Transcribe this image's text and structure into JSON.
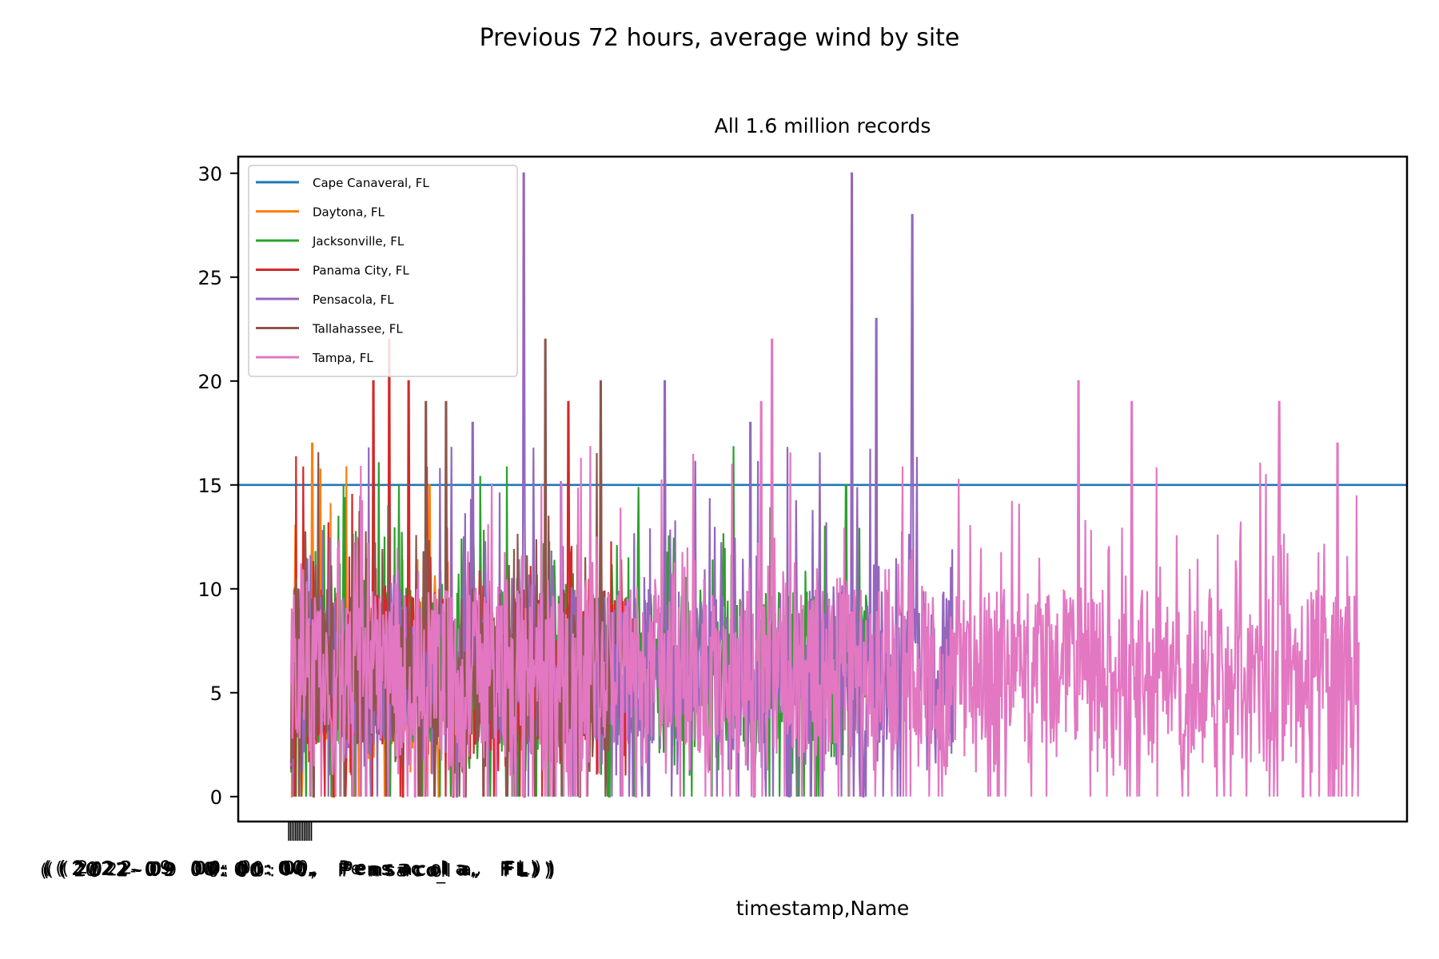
{
  "chart_data": {
    "type": "line",
    "suptitle": "Previous 72 hours, average wind by site",
    "title": "All 1.6 million records",
    "xlabel": "timestamp,Name",
    "ylabel": "",
    "ylim": [
      -1.2,
      30.8
    ],
    "yticks": [
      0,
      5,
      10,
      15,
      20,
      25,
      30
    ],
    "grid": false,
    "legend_position": "top-left",
    "x_tick_labels_illegible": true,
    "series": [
      {
        "name": "Cape Canaveral, FL",
        "color": "#1f77b4",
        "constant_value": 15,
        "x_range": [
          0,
          1
        ],
        "peaks": []
      },
      {
        "name": "Daytona, FL",
        "color": "#ff7f0e",
        "x_range": [
          0,
          0.15
        ],
        "peaks": [
          [
            0.02,
            17
          ],
          [
            0.13,
            15
          ]
        ]
      },
      {
        "name": "Jacksonville, FL",
        "color": "#2ca02c",
        "x_range": [
          0,
          0.54
        ],
        "peaks": [
          [
            0.17,
            13
          ],
          [
            0.5,
            13
          ],
          [
            0.52,
            15
          ]
        ]
      },
      {
        "name": "Panama City, FL",
        "color": "#d62728",
        "x_range": [
          0,
          0.32
        ],
        "peaks": [
          [
            0.077,
            20
          ],
          [
            0.092,
            22
          ],
          [
            0.11,
            20
          ],
          [
            0.26,
            19
          ],
          [
            0.29,
            18
          ]
        ]
      },
      {
        "name": "Pensacola, FL",
        "color": "#9467bd",
        "x_range": [
          0,
          0.62
        ],
        "peaks": [
          [
            0.17,
            18
          ],
          [
            0.218,
            30
          ],
          [
            0.35,
            20
          ],
          [
            0.43,
            18
          ],
          [
            0.525,
            30
          ],
          [
            0.548,
            23
          ],
          [
            0.582,
            28
          ]
        ]
      },
      {
        "name": "Tallahassee, FL",
        "color": "#8c564b",
        "x_range": [
          0,
          0.3
        ],
        "peaks": [
          [
            0.238,
            22
          ],
          [
            0.29,
            20
          ],
          [
            0.126,
            19
          ],
          [
            0.145,
            19
          ]
        ]
      },
      {
        "name": "Tampa, FL",
        "color": "#e377c2",
        "x_range": [
          0,
          1
        ],
        "peaks": [
          [
            0.45,
            22
          ],
          [
            0.44,
            19
          ],
          [
            0.737,
            20
          ],
          [
            0.787,
            19
          ],
          [
            0.925,
            19
          ],
          [
            0.98,
            17
          ]
        ]
      }
    ]
  }
}
